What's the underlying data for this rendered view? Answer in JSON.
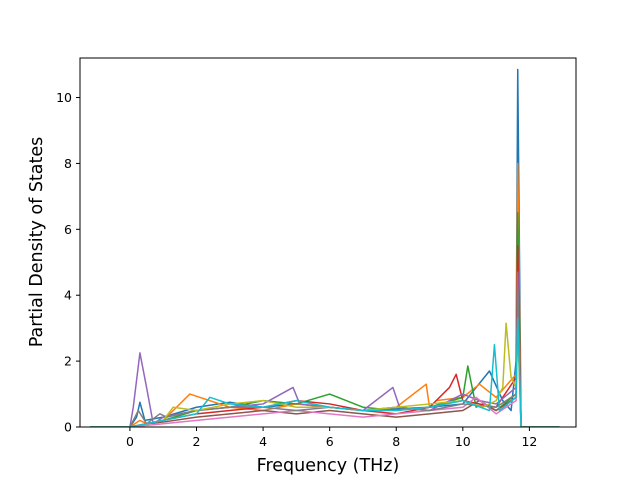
{
  "chart_data": {
    "type": "line",
    "title": "",
    "xlabel": "Frequency (THz)",
    "ylabel": "Partial Density of States",
    "xlim": [
      -1.5,
      13.4
    ],
    "ylim": [
      0,
      11.2
    ],
    "xticks": [
      0,
      2,
      4,
      6,
      8,
      10,
      12
    ],
    "yticks": [
      0,
      2,
      4,
      6,
      8,
      10
    ],
    "grid": false,
    "legend": "none",
    "palette": [
      "#1f77b4",
      "#ff7f0e",
      "#2ca02c",
      "#d62728",
      "#9467bd",
      "#8c564b",
      "#e377c2",
      "#7f7f7f",
      "#bcbd22",
      "#17becf"
    ],
    "series": [
      {
        "color": "#1f77b4",
        "x": [
          -1.2,
          0.0,
          0.2,
          0.3,
          0.45,
          1.0,
          2.0,
          3.0,
          4.0,
          5.0,
          6.0,
          7.0,
          8.0,
          9.0,
          10.0,
          10.8,
          11.2,
          11.45,
          11.6,
          11.65,
          11.75,
          12.9
        ],
        "y": [
          0,
          0,
          0.3,
          0.75,
          0.2,
          0.3,
          0.6,
          0.75,
          0.6,
          0.7,
          0.6,
          0.5,
          0.55,
          0.6,
          0.7,
          1.7,
          0.8,
          0.5,
          2.0,
          10.85,
          0,
          0
        ]
      },
      {
        "color": "#ff7f0e",
        "x": [
          -1.2,
          0.0,
          0.3,
          0.5,
          1.0,
          1.8,
          3.0,
          4.0,
          5.0,
          6.0,
          7.0,
          8.0,
          8.9,
          9.0,
          9.2,
          10.0,
          10.5,
          11.0,
          11.6,
          11.65,
          11.75,
          12.9
        ],
        "y": [
          0,
          0,
          0.2,
          0.1,
          0.2,
          1.0,
          0.6,
          0.5,
          0.7,
          0.6,
          0.5,
          0.6,
          1.3,
          0.6,
          0.8,
          0.9,
          1.3,
          0.9,
          1.6,
          8.0,
          0,
          0
        ]
      },
      {
        "color": "#2ca02c",
        "x": [
          -1.2,
          0.0,
          0.5,
          1.0,
          2.0,
          3.0,
          4.0,
          5.0,
          6.0,
          7.0,
          8.0,
          9.0,
          10.0,
          10.15,
          10.4,
          10.6,
          11.0,
          11.6,
          11.65,
          11.75,
          12.9
        ],
        "y": [
          0,
          0,
          0.1,
          0.2,
          0.5,
          0.6,
          0.8,
          0.7,
          1.0,
          0.6,
          0.5,
          0.6,
          0.9,
          1.85,
          0.6,
          0.7,
          0.5,
          1.0,
          6.5,
          0,
          0
        ]
      },
      {
        "color": "#d62728",
        "x": [
          -1.2,
          0.0,
          0.5,
          1.0,
          2.0,
          3.0,
          4.0,
          5.0,
          6.0,
          7.0,
          8.0,
          9.0,
          9.6,
          9.8,
          10.0,
          10.5,
          11.0,
          11.6,
          11.65,
          11.75,
          12.9
        ],
        "y": [
          0,
          0,
          0.1,
          0.2,
          0.4,
          0.5,
          0.6,
          0.8,
          0.7,
          0.5,
          0.4,
          0.6,
          1.2,
          1.6,
          0.8,
          0.7,
          0.6,
          1.5,
          5.5,
          0,
          0
        ]
      },
      {
        "color": "#9467bd",
        "x": [
          -1.2,
          0.0,
          0.1,
          0.3,
          0.5,
          0.7,
          1.0,
          2.0,
          3.0,
          4.0,
          4.9,
          5.1,
          6.0,
          7.0,
          7.9,
          8.1,
          9.0,
          10.0,
          10.5,
          11.0,
          11.6,
          11.65,
          11.75,
          12.9
        ],
        "y": [
          0,
          0,
          0.6,
          2.25,
          1.2,
          0.1,
          0.3,
          0.5,
          0.6,
          0.7,
          1.2,
          0.7,
          0.6,
          0.5,
          1.2,
          0.6,
          0.5,
          1.0,
          0.8,
          0.7,
          1.2,
          4.7,
          0,
          0
        ]
      },
      {
        "color": "#8c564b",
        "x": [
          -1.2,
          0.0,
          0.5,
          1.0,
          2.0,
          3.0,
          4.0,
          5.0,
          6.0,
          7.0,
          8.0,
          9.0,
          10.0,
          10.5,
          11.0,
          11.6,
          11.65,
          11.75,
          12.9
        ],
        "y": [
          0,
          0,
          0.1,
          0.15,
          0.3,
          0.4,
          0.5,
          0.4,
          0.5,
          0.4,
          0.3,
          0.4,
          0.5,
          0.8,
          0.5,
          0.9,
          3.8,
          0,
          0
        ]
      },
      {
        "color": "#e377c2",
        "x": [
          -1.2,
          0.0,
          0.5,
          1.0,
          2.0,
          3.0,
          4.0,
          5.0,
          6.0,
          7.0,
          8.0,
          9.0,
          10.0,
          10.4,
          11.0,
          11.6,
          11.65,
          11.75,
          12.9
        ],
        "y": [
          0,
          0,
          0.05,
          0.1,
          0.2,
          0.3,
          0.4,
          0.5,
          0.4,
          0.3,
          0.4,
          0.5,
          0.6,
          0.9,
          0.4,
          0.8,
          3.5,
          0,
          0
        ]
      },
      {
        "color": "#7f7f7f",
        "x": [
          -1.2,
          0.0,
          0.25,
          0.5,
          0.9,
          1.1,
          2.0,
          3.0,
          4.0,
          5.0,
          6.0,
          7.0,
          8.0,
          9.0,
          10.0,
          11.0,
          11.6,
          11.65,
          11.75,
          12.9
        ],
        "y": [
          0,
          0,
          0.5,
          0.1,
          0.4,
          0.3,
          0.5,
          0.6,
          0.6,
          0.5,
          0.6,
          0.5,
          0.6,
          0.5,
          0.7,
          0.6,
          1.0,
          4.2,
          0,
          0
        ]
      },
      {
        "color": "#bcbd22",
        "x": [
          -1.2,
          0.0,
          0.5,
          1.0,
          1.3,
          2.0,
          3.0,
          4.0,
          5.0,
          6.0,
          7.0,
          8.0,
          9.0,
          10.0,
          10.6,
          11.0,
          11.2,
          11.3,
          11.45,
          11.6,
          11.65,
          11.75,
          12.9
        ],
        "y": [
          0,
          0,
          0.1,
          0.2,
          0.6,
          0.5,
          0.7,
          0.8,
          0.6,
          0.6,
          0.5,
          0.6,
          0.7,
          0.8,
          0.6,
          0.8,
          1.2,
          3.15,
          1.5,
          1.2,
          3.0,
          0,
          0
        ]
      },
      {
        "color": "#17becf",
        "x": [
          -1.2,
          0.0,
          0.5,
          1.0,
          2.0,
          2.4,
          3.0,
          4.0,
          5.0,
          6.0,
          7.0,
          8.0,
          9.0,
          10.0,
          10.8,
          10.95,
          11.1,
          11.6,
          11.65,
          11.75,
          12.9
        ],
        "y": [
          0,
          0,
          0.1,
          0.2,
          0.4,
          0.9,
          0.7,
          0.6,
          0.8,
          0.6,
          0.5,
          0.5,
          0.6,
          0.8,
          0.5,
          2.5,
          0.5,
          0.9,
          3.3,
          0,
          0
        ]
      }
    ]
  }
}
